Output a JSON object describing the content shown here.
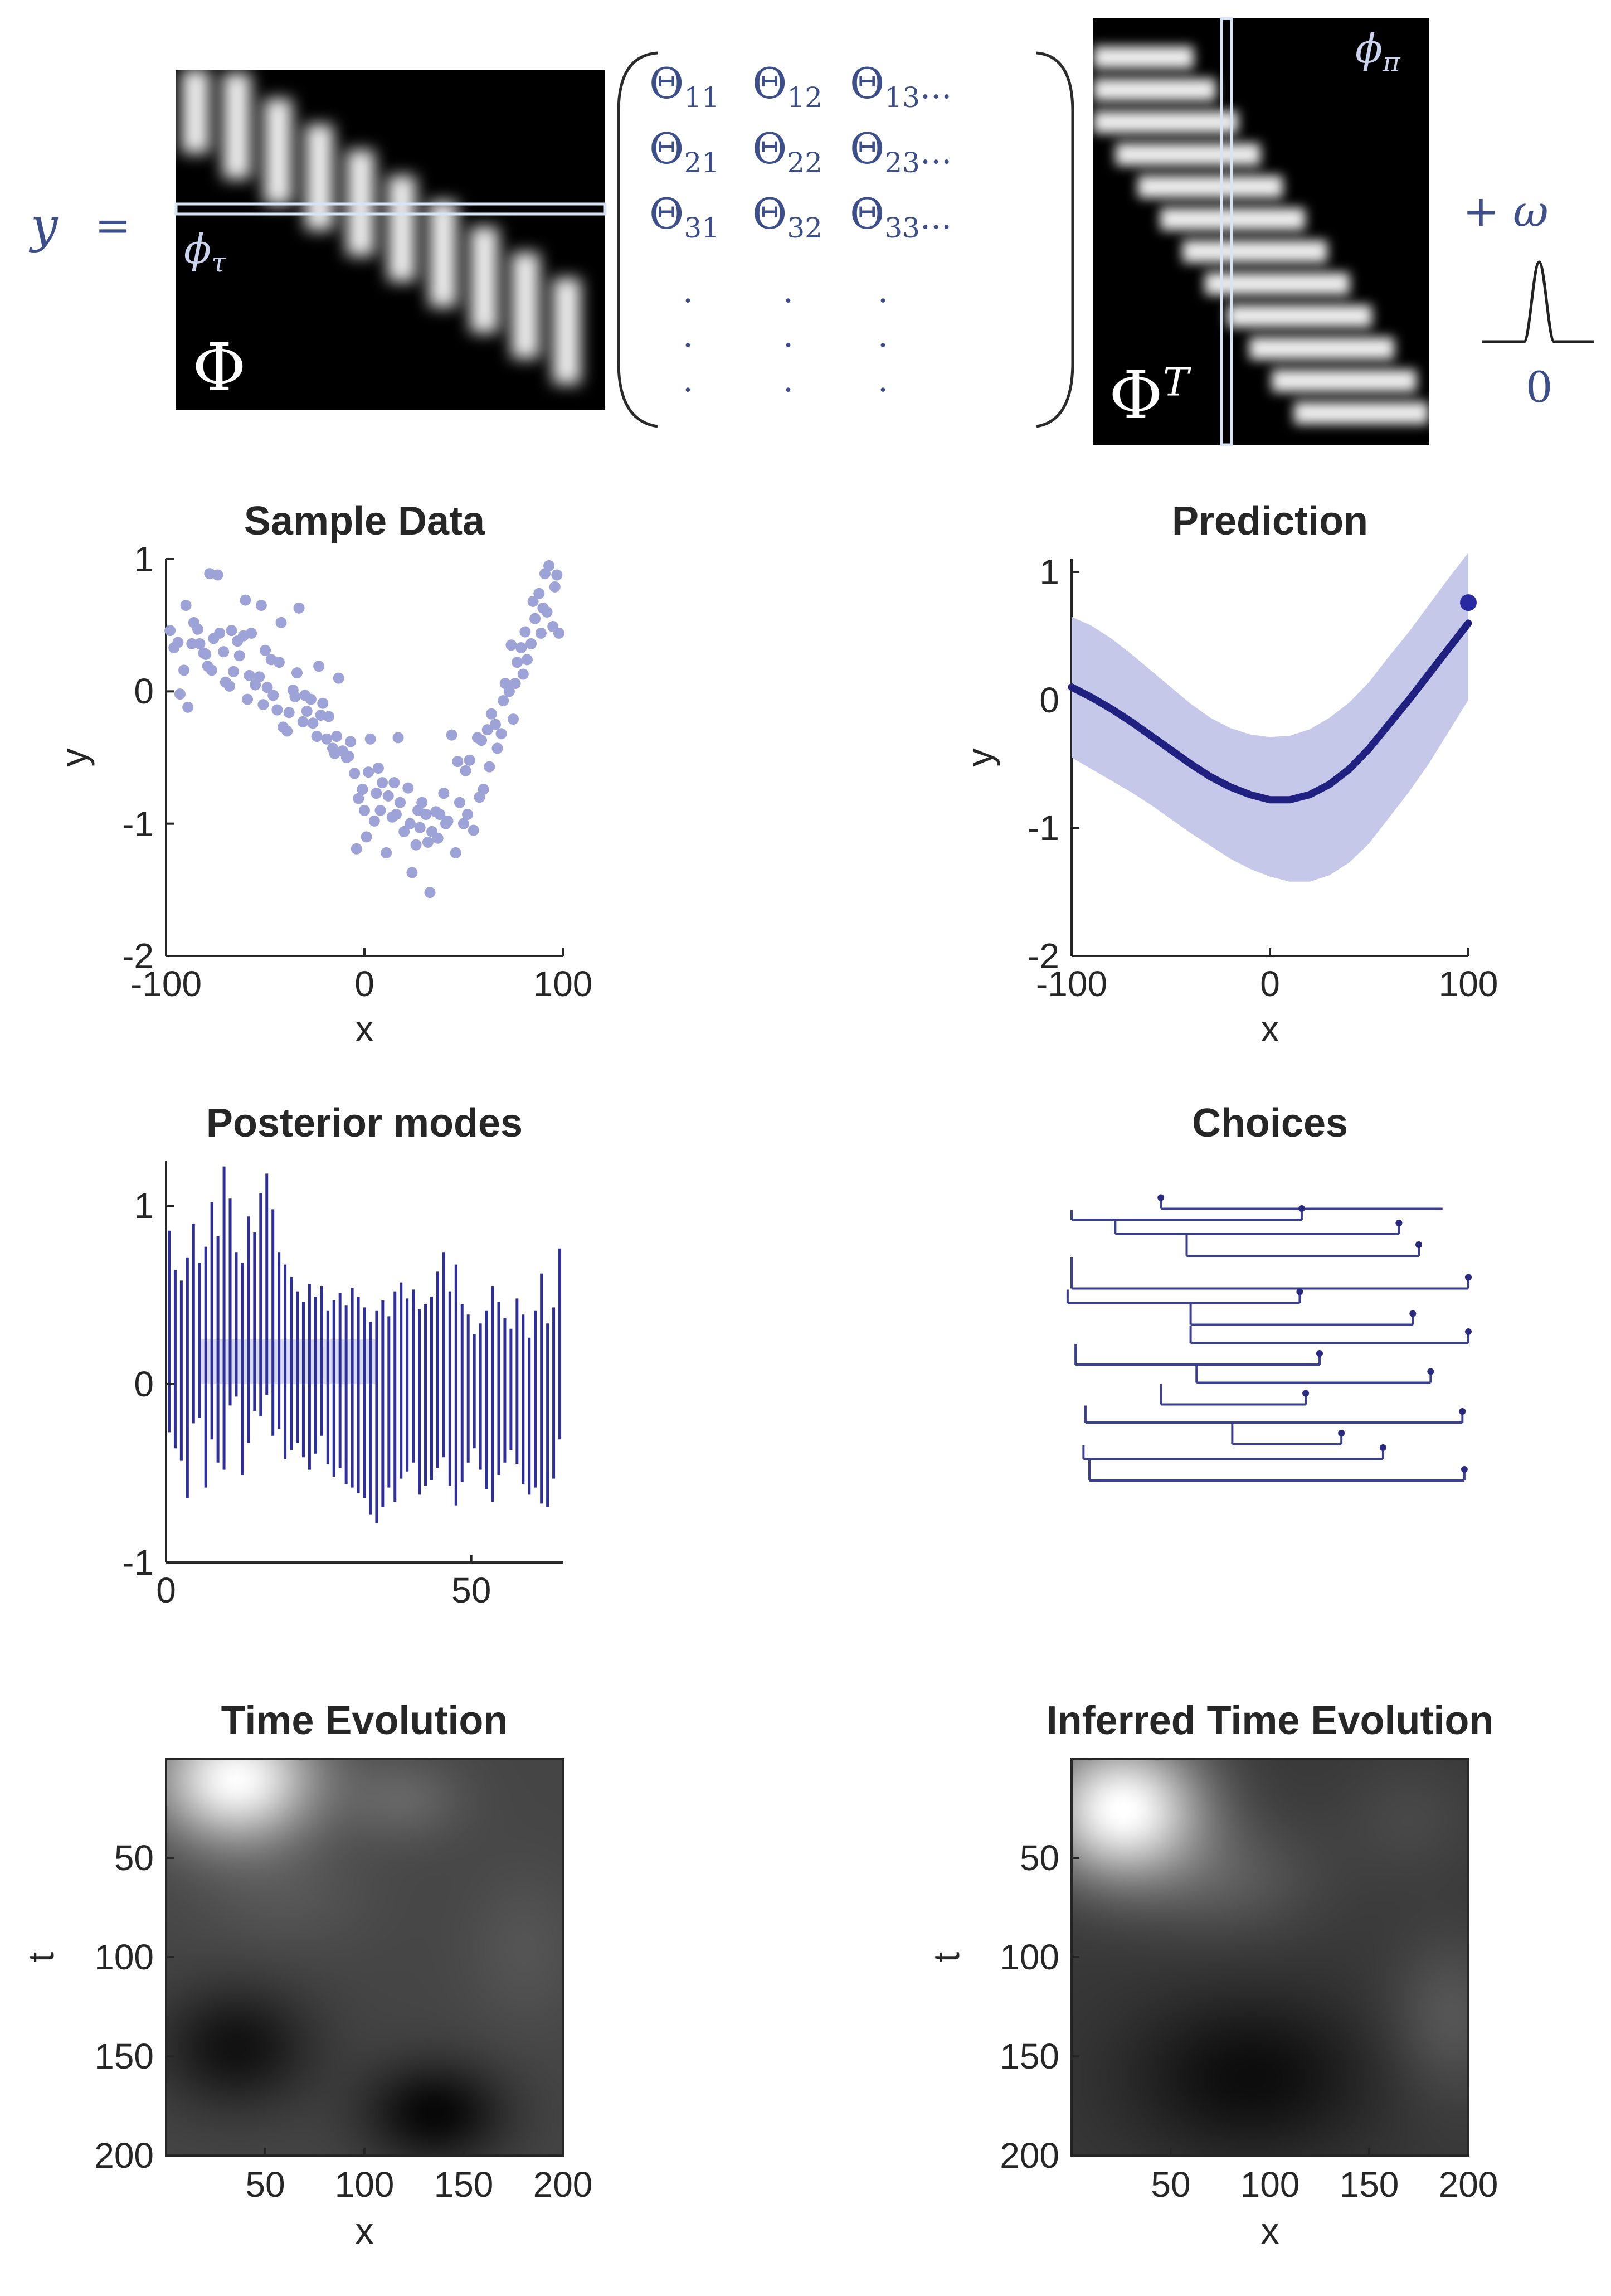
{
  "equation": {
    "lhs": "y",
    "equals": "=",
    "phi_label": "Φ",
    "phi_t_label": "Φ",
    "phi_t_sup": "T",
    "phi_tau": "ϕ",
    "phi_tau_sub": "τ",
    "phi_pi": "ϕ",
    "phi_pi_sub": "π",
    "plus_omega": "+ ω",
    "noise_zero": "0",
    "theta": {
      "rows": [
        {
          "cells": [
            {
              "base": "Θ",
              "sub": "11"
            },
            {
              "base": "Θ",
              "sub": "12"
            },
            {
              "base": "Θ",
              "sub": "13",
              "ellipsis": "..."
            }
          ]
        },
        {
          "cells": [
            {
              "base": "Θ",
              "sub": "21"
            },
            {
              "base": "Θ",
              "sub": "22"
            },
            {
              "base": "Θ",
              "sub": "23",
              "ellipsis": "..."
            }
          ]
        },
        {
          "cells": [
            {
              "base": "Θ",
              "sub": "31"
            },
            {
              "base": "Θ",
              "sub": "32"
            },
            {
              "base": "Θ",
              "sub": "33",
              "ellipsis": "..."
            }
          ]
        }
      ],
      "vdots": "·"
    }
  },
  "colors": {
    "blue_dark": "#1f2080",
    "blue_light": "#9da3d6",
    "band": "#c5c8e8",
    "ink": "#3d4f8a",
    "axis": "#262626"
  },
  "chart_data": [
    {
      "id": "sample",
      "type": "scatter",
      "title": "Sample Data",
      "xlabel": "x",
      "ylabel": "y",
      "xlim": [
        -100,
        100
      ],
      "ylim": [
        -2,
        1
      ],
      "xticks": [
        -100,
        0,
        100
      ],
      "yticks": [
        1,
        0,
        -1,
        -2
      ],
      "xtick_labels": [
        "-100",
        "0",
        "100"
      ],
      "ytick_labels": [
        "1",
        "0",
        "-1",
        "-2"
      ],
      "points": [
        [
          -98,
          0.46
        ],
        [
          -96,
          0.33
        ],
        [
          -94,
          0.37
        ],
        [
          -93,
          -0.02
        ],
        [
          -91,
          0.16
        ],
        [
          -90,
          0.65
        ],
        [
          -89,
          -0.12
        ],
        [
          -87,
          0.36
        ],
        [
          -86,
          0.52
        ],
        [
          -84,
          0.47
        ],
        [
          -83,
          0.36
        ],
        [
          -81,
          0.29
        ],
        [
          -80,
          0.28
        ],
        [
          -79,
          0.19
        ],
        [
          -78,
          0.89
        ],
        [
          -77,
          0.16
        ],
        [
          -76,
          0.4
        ],
        [
          -74,
          0.88
        ],
        [
          -73,
          0.44
        ],
        [
          -71,
          0.3
        ],
        [
          -70,
          0.07
        ],
        [
          -68,
          0.04
        ],
        [
          -67,
          0.46
        ],
        [
          -66,
          0.15
        ],
        [
          -64,
          0.38
        ],
        [
          -63,
          0.27
        ],
        [
          -61,
          0.42
        ],
        [
          -60,
          0.69
        ],
        [
          -59,
          -0.06
        ],
        [
          -58,
          0.12
        ],
        [
          -57,
          0.44
        ],
        [
          -55,
          0.05
        ],
        [
          -53,
          0.11
        ],
        [
          -52,
          0.65
        ],
        [
          -51,
          -0.1
        ],
        [
          -50,
          0.31
        ],
        [
          -49,
          0.03
        ],
        [
          -47,
          0.24
        ],
        [
          -46,
          -0.03
        ],
        [
          -44,
          -0.14
        ],
        [
          -43,
          0.22
        ],
        [
          -42,
          0.52
        ],
        [
          -41,
          -0.27
        ],
        [
          -39,
          -0.3
        ],
        [
          -38,
          -0.16
        ],
        [
          -36,
          0.01
        ],
        [
          -35,
          -0.04
        ],
        [
          -34,
          0.14
        ],
        [
          -33,
          0.63
        ],
        [
          -31,
          -0.23
        ],
        [
          -30,
          -0.03
        ],
        [
          -29,
          -0.15
        ],
        [
          -27,
          -0.06
        ],
        [
          -26,
          -0.24
        ],
        [
          -24,
          -0.34
        ],
        [
          -23,
          0.19
        ],
        [
          -22,
          -0.18
        ],
        [
          -21,
          -0.09
        ],
        [
          -19,
          -0.36
        ],
        [
          -18,
          -0.19
        ],
        [
          -16,
          -0.43
        ],
        [
          -15,
          -0.47
        ],
        [
          -14,
          -0.34
        ],
        [
          -13,
          0.1
        ],
        [
          -11,
          -0.45
        ],
        [
          -9,
          -0.5
        ],
        [
          -8,
          -0.49
        ],
        [
          -7,
          -0.38
        ],
        [
          -5,
          -0.62
        ],
        [
          -4,
          -1.19
        ],
        [
          -3,
          -0.81
        ],
        [
          -1,
          -0.74
        ],
        [
          0,
          -0.9
        ],
        [
          1,
          -1.1
        ],
        [
          2,
          -0.61
        ],
        [
          3,
          -0.36
        ],
        [
          5,
          -0.98
        ],
        [
          6,
          -0.77
        ],
        [
          7,
          -0.58
        ],
        [
          8,
          -0.9
        ],
        [
          9,
          -0.69
        ],
        [
          11,
          -1.22
        ],
        [
          12,
          -0.79
        ],
        [
          14,
          -0.95
        ],
        [
          15,
          -0.69
        ],
        [
          16,
          -0.93
        ],
        [
          17,
          -0.35
        ],
        [
          18,
          -0.84
        ],
        [
          20,
          -1.06
        ],
        [
          22,
          -0.73
        ],
        [
          23,
          -1.0
        ],
        [
          24,
          -1.37
        ],
        [
          26,
          -1.16
        ],
        [
          27,
          -0.9
        ],
        [
          28,
          -1.03
        ],
        [
          29,
          -0.84
        ],
        [
          31,
          -0.93
        ],
        [
          32,
          -1.14
        ],
        [
          33,
          -1.52
        ],
        [
          34,
          -1.06
        ],
        [
          36,
          -0.91
        ],
        [
          37,
          -1.11
        ],
        [
          38,
          -0.93
        ],
        [
          40,
          -0.77
        ],
        [
          41,
          -1.0
        ],
        [
          42,
          -0.98
        ],
        [
          44,
          -0.33
        ],
        [
          46,
          -1.22
        ],
        [
          47,
          -0.53
        ],
        [
          48,
          -0.84
        ],
        [
          50,
          -1.0
        ],
        [
          51,
          -0.6
        ],
        [
          52,
          -0.93
        ],
        [
          53,
          -0.52
        ],
        [
          55,
          -1.05
        ],
        [
          57,
          -0.35
        ],
        [
          58,
          -0.8
        ],
        [
          59,
          -0.37
        ],
        [
          60,
          -0.74
        ],
        [
          62,
          -0.29
        ],
        [
          63,
          -0.57
        ],
        [
          64,
          -0.17
        ],
        [
          66,
          -0.25
        ],
        [
          67,
          -0.43
        ],
        [
          69,
          -0.32
        ],
        [
          70,
          -0.07
        ],
        [
          71,
          0.06
        ],
        [
          73,
          0.0
        ],
        [
          74,
          0.35
        ],
        [
          75,
          -0.21
        ],
        [
          76,
          0.06
        ],
        [
          77,
          0.22
        ],
        [
          79,
          0.33
        ],
        [
          80,
          0.13
        ],
        [
          81,
          0.45
        ],
        [
          82,
          0.24
        ],
        [
          84,
          0.36
        ],
        [
          85,
          0.68
        ],
        [
          86,
          0.55
        ],
        [
          88,
          0.74
        ],
        [
          89,
          0.44
        ],
        [
          90,
          0.63
        ],
        [
          91,
          0.89
        ],
        [
          92,
          0.6
        ],
        [
          93,
          0.95
        ],
        [
          95,
          0.49
        ],
        [
          96,
          0.79
        ],
        [
          97,
          0.88
        ],
        [
          98,
          0.44
        ]
      ]
    },
    {
      "id": "prediction",
      "type": "line",
      "title": "Prediction",
      "xlabel": "x",
      "ylabel": "y",
      "xlim": [
        -100,
        100
      ],
      "ylim": [
        -2,
        1.1
      ],
      "xticks": [
        -100,
        0,
        100
      ],
      "yticks": [
        1,
        0,
        -1,
        -2
      ],
      "xtick_labels": [
        "-100",
        "0",
        "100"
      ],
      "ytick_labels": [
        "1",
        "0",
        "-1",
        "-2"
      ],
      "x": [
        -100,
        -90,
        -80,
        -70,
        -60,
        -50,
        -40,
        -30,
        -20,
        -10,
        0,
        10,
        20,
        30,
        40,
        50,
        60,
        70,
        80,
        90,
        100
      ],
      "mean": [
        0.1,
        0.02,
        -0.07,
        -0.17,
        -0.28,
        -0.39,
        -0.5,
        -0.6,
        -0.68,
        -0.74,
        -0.78,
        -0.78,
        -0.74,
        -0.66,
        -0.54,
        -0.38,
        -0.19,
        0.0,
        0.2,
        0.4,
        0.6
      ],
      "upper": [
        0.65,
        0.58,
        0.48,
        0.36,
        0.23,
        0.1,
        -0.03,
        -0.14,
        -0.22,
        -0.27,
        -0.29,
        -0.28,
        -0.23,
        -0.14,
        -0.02,
        0.14,
        0.34,
        0.53,
        0.74,
        0.95,
        1.15
      ],
      "lower": [
        -0.45,
        -0.54,
        -0.63,
        -0.72,
        -0.82,
        -0.93,
        -1.04,
        -1.14,
        -1.24,
        -1.32,
        -1.38,
        -1.42,
        -1.42,
        -1.37,
        -1.27,
        -1.12,
        -0.92,
        -0.72,
        -0.5,
        -0.25,
        0.0
      ],
      "marker": [
        100,
        0.76
      ]
    },
    {
      "id": "posterior",
      "type": "bar",
      "title": "Posterior modes",
      "xlim": [
        0,
        65
      ],
      "ylim": [
        -1,
        1.25
      ],
      "xticks": [
        0,
        50
      ],
      "yticks": [
        1,
        0,
        -1
      ],
      "xtick_labels": [
        "0",
        "50"
      ],
      "ytick_labels": [
        "1",
        "0",
        "-1"
      ],
      "series": [
        {
          "name": "upper",
          "values": [
            0.86,
            0.64,
            0.58,
            0.71,
            0.9,
            0.68,
            0.77,
            1.02,
            0.83,
            1.22,
            1.04,
            0.74,
            0.68,
            0.94,
            0.85,
            1.07,
            1.18,
            0.98,
            0.74,
            0.67,
            0.6,
            0.52,
            0.46,
            0.56,
            0.49,
            0.55,
            0.41,
            0.47,
            0.51,
            0.44,
            0.54,
            0.49,
            0.43,
            0.35,
            0.41,
            0.47,
            0.38,
            0.52,
            0.57,
            0.48,
            0.53,
            0.42,
            0.45,
            0.49,
            0.63,
            0.74,
            0.52,
            0.67,
            0.45,
            0.39,
            0.28,
            0.34,
            0.41,
            0.55,
            0.46,
            0.37,
            0.31,
            0.48,
            0.39,
            0.26,
            0.41,
            0.62,
            0.34,
            0.43,
            0.76
          ]
        },
        {
          "name": "lower",
          "values": [
            -0.27,
            -0.36,
            -0.43,
            -0.64,
            -0.22,
            -0.19,
            -0.58,
            -0.31,
            -0.44,
            -0.48,
            -0.12,
            -0.07,
            -0.51,
            -0.33,
            -0.15,
            -0.18,
            -0.06,
            -0.29,
            -0.25,
            -0.42,
            -0.37,
            -0.33,
            -0.41,
            -0.48,
            -0.39,
            -0.29,
            -0.45,
            -0.52,
            -0.47,
            -0.56,
            -0.58,
            -0.61,
            -0.64,
            -0.73,
            -0.78,
            -0.69,
            -0.58,
            -0.66,
            -0.53,
            -0.49,
            -0.44,
            -0.62,
            -0.57,
            -0.54,
            -0.47,
            -0.41,
            -0.57,
            -0.68,
            -0.55,
            -0.44,
            -0.36,
            -0.48,
            -0.59,
            -0.66,
            -0.51,
            -0.44,
            -0.37,
            -0.45,
            -0.56,
            -0.62,
            -0.58,
            -0.67,
            -0.69,
            -0.53,
            -0.31
          ]
        }
      ]
    },
    {
      "id": "choices",
      "type": "line",
      "title": "Choices",
      "xlim": [
        -100,
        100
      ],
      "segments": [
        [
          -45,
          87,
          -55
        ],
        [
          -60,
          -100,
          16
        ],
        [
          -80,
          -78,
          65
        ],
        [
          -110,
          -42,
          75
        ],
        [
          -155,
          -100,
          100
        ],
        [
          -175,
          -102,
          15
        ],
        [
          -205,
          -40,
          72
        ],
        [
          -230,
          -40,
          100
        ],
        [
          -260,
          -98,
          25
        ],
        [
          -285,
          -37,
          81
        ],
        [
          -315,
          -55,
          18
        ],
        [
          -340,
          -93,
          97
        ],
        [
          -370,
          -19,
          36
        ],
        [
          -390,
          -94,
          57
        ],
        [
          -420,
          -91,
          98
        ]
      ]
    },
    {
      "id": "time_evolution",
      "type": "heatmap",
      "title": "Time Evolution",
      "xlabel": "x",
      "ylabel": "t",
      "xlim": [
        0,
        200
      ],
      "ylim": [
        0,
        200
      ],
      "xticks": [
        50,
        100,
        150,
        200
      ],
      "yticks": [
        50,
        100,
        150,
        200
      ],
      "xtick_labels": [
        "50",
        "100",
        "150",
        "200"
      ],
      "ytick_labels": [
        "50",
        "100",
        "150",
        "200"
      ],
      "background": 0.27,
      "blobs": [
        [
          35,
          10,
          40,
          32,
          0.72
        ],
        [
          120,
          20,
          30,
          22,
          0.12
        ],
        [
          60,
          70,
          45,
          28,
          0.06
        ],
        [
          35,
          145,
          38,
          30,
          -0.2
        ],
        [
          135,
          178,
          35,
          25,
          -0.24
        ],
        [
          180,
          95,
          30,
          40,
          0.06
        ]
      ]
    },
    {
      "id": "inferred",
      "type": "heatmap",
      "title": "Inferred Time Evolution",
      "xlabel": "x",
      "ylabel": "t",
      "xlim": [
        0,
        200
      ],
      "ylim": [
        0,
        200
      ],
      "xticks": [
        50,
        100,
        150,
        200
      ],
      "yticks": [
        50,
        100,
        150,
        200
      ],
      "xtick_labels": [
        "50",
        "100",
        "150",
        "200"
      ],
      "ytick_labels": [
        "50",
        "100",
        "150",
        "200"
      ],
      "background": 0.22,
      "blobs": [
        [
          25,
          25,
          40,
          35,
          0.78
        ],
        [
          80,
          60,
          45,
          30,
          0.12
        ],
        [
          90,
          160,
          60,
          40,
          -0.17
        ],
        [
          190,
          130,
          30,
          40,
          0.12
        ],
        [
          170,
          30,
          35,
          30,
          0.06
        ]
      ]
    }
  ]
}
